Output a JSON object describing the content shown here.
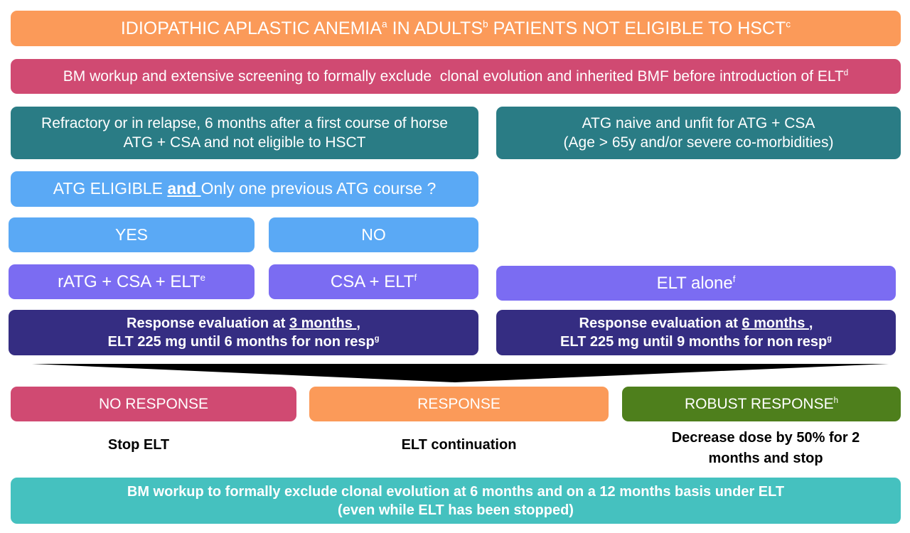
{
  "header": [
    "IDIOPATHIC APLASTIC ANEMIA",
    "a",
    " IN ADULTS",
    "b",
    " PATIENTS NOT ELIGIBLE TO HSCT",
    "c"
  ],
  "screening": [
    "BM workup and extensive screening to formally exclude  clonal evolution and inherited BMF before introduction of ELT",
    "d"
  ],
  "refractory": [
    "Refractory or in relapse, 6 months after a first course of horse",
    "ATG + CSA and not eligible to HSCT"
  ],
  "naive": [
    "ATG naive and unfit for ATG + CSA",
    "(Age > 65y and/or severe co-morbidities)"
  ],
  "question": [
    "ATG ELIGIBLE ",
    "and ",
    "Only one previous ATG course ?"
  ],
  "yes": "YES",
  "no": "NO",
  "ratg": [
    "rATG + CSA + ELT",
    "e"
  ],
  "csa": [
    "CSA + ELT",
    "f"
  ],
  "alone": [
    "ELT alone",
    "f"
  ],
  "eval_left": [
    "Response evaluation at ",
    "3 months ",
    ",",
    "ELT 225 mg until 6 months for non resp",
    "g"
  ],
  "eval_right": [
    "Response evaluation at ",
    "6 months ",
    ",",
    "ELT 225 mg until 9 months for non resp",
    "g"
  ],
  "outcomes": {
    "no_response": "NO RESPONSE",
    "response": "RESPONSE",
    "robust": [
      "ROBUST RESPONSE",
      "h"
    ]
  },
  "actions": {
    "stop": "Stop ELT",
    "continue": "ELT continuation",
    "decrease": [
      "Decrease dose by 50% for 2",
      "months and stop"
    ]
  },
  "footer": [
    "BM workup to formally exclude clonal evolution at 6 months and on a 12 months basis under ELT",
    "(even while ELT has been stopped)"
  ]
}
